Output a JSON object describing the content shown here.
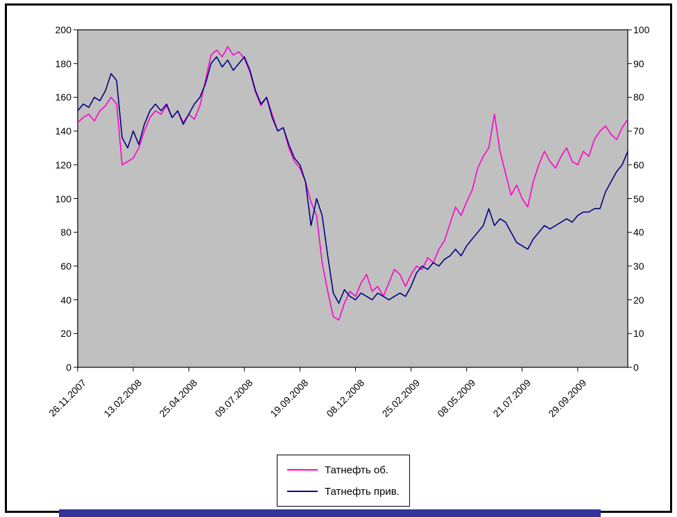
{
  "chart_data": {
    "type": "line",
    "title": "",
    "plot_bg": "#C0C0C0",
    "grid": false,
    "legend_position": "bottom-center",
    "n_points": 100,
    "x_tick_labels": [
      "26.11.2007",
      "13.02.2008",
      "25.04.2008",
      "09.07.2008",
      "19.09.2008",
      "08.12.2008",
      "25.02.2009",
      "08.05.2009",
      "21.07.2009",
      "29.09.2009"
    ],
    "x_tick_indices": [
      0,
      10,
      20,
      30,
      40,
      50,
      60,
      70,
      80,
      90
    ],
    "left_axis": {
      "min": 0,
      "max": 200,
      "step": 20,
      "labels": [
        "0",
        "20",
        "40",
        "60",
        "80",
        "100",
        "120",
        "140",
        "160",
        "180",
        "200"
      ]
    },
    "right_axis": {
      "min": 0,
      "max": 100,
      "step": 10,
      "labels": [
        "0",
        "10",
        "20",
        "30",
        "40",
        "50",
        "60",
        "70",
        "80",
        "90",
        "100"
      ]
    },
    "series": [
      {
        "name": "Татнефть об.",
        "color": "#FF00CC",
        "axis": "left",
        "values": [
          145,
          148,
          150,
          146,
          152,
          155,
          160,
          156,
          120,
          122,
          124,
          130,
          140,
          148,
          152,
          150,
          155,
          148,
          152,
          145,
          150,
          147,
          155,
          170,
          185,
          188,
          184,
          190,
          185,
          187,
          183,
          175,
          163,
          155,
          160,
          150,
          140,
          142,
          130,
          122,
          118,
          110,
          98,
          90,
          62,
          45,
          30,
          28,
          38,
          45,
          42,
          50,
          55,
          45,
          48,
          42,
          50,
          58,
          55,
          48,
          55,
          60,
          58,
          65,
          62,
          70,
          75,
          85,
          95,
          90,
          98,
          105,
          118,
          125,
          130,
          150,
          128,
          115,
          102,
          108,
          100,
          95,
          110,
          120,
          128,
          122,
          118,
          125,
          130,
          122,
          120,
          128,
          125,
          135,
          140,
          143,
          138,
          135,
          142,
          147
        ]
      },
      {
        "name": "Татнефть прив.",
        "color": "#000080",
        "axis": "right",
        "values": [
          76,
          78,
          77,
          80,
          79,
          82,
          87,
          85,
          68,
          65,
          70,
          66,
          72,
          76,
          78,
          76,
          78,
          74,
          76,
          72,
          75,
          78,
          80,
          84,
          90,
          92,
          89,
          91,
          88,
          90,
          92,
          88,
          82,
          78,
          80,
          74,
          70,
          71,
          66,
          62,
          60,
          55,
          42,
          50,
          45,
          33,
          22,
          19,
          23,
          21,
          20,
          22,
          21,
          20,
          22,
          21,
          20,
          21,
          22,
          21,
          24,
          28,
          30,
          29,
          31,
          30,
          32,
          33,
          35,
          33,
          36,
          38,
          40,
          42,
          47,
          42,
          44,
          43,
          40,
          37,
          36,
          35,
          38,
          40,
          42,
          41,
          42,
          43,
          44,
          43,
          45,
          46,
          46,
          47,
          47,
          52,
          55,
          58,
          60,
          64
        ]
      }
    ]
  }
}
